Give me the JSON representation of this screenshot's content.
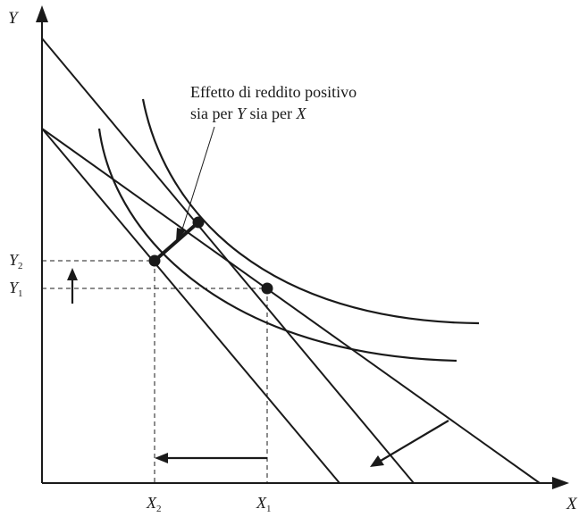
{
  "axes": {
    "y_label": "Y",
    "x_label": "X"
  },
  "ticks": {
    "y2": {
      "letter": "Y",
      "sub": "2"
    },
    "y1": {
      "letter": "Y",
      "sub": "1"
    },
    "x2": {
      "letter": "X",
      "sub": "2"
    },
    "x1": {
      "letter": "X",
      "sub": "1"
    }
  },
  "annotation": {
    "line1": "Effetto di reddito positivo",
    "line2_a": "sia per ",
    "line2_b": "Y",
    "line2_c": " sia per ",
    "line2_d": "X"
  }
}
